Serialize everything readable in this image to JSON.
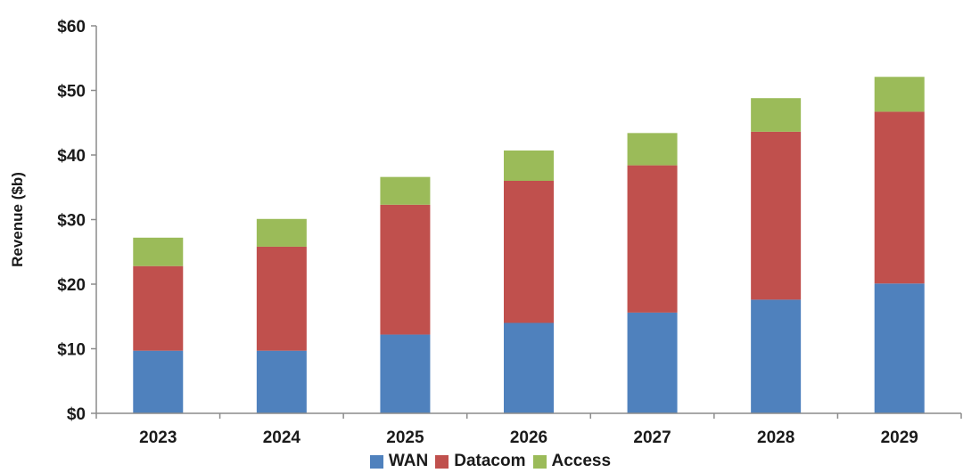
{
  "chart_data": {
    "type": "bar",
    "stacked": true,
    "title": "",
    "xlabel": "",
    "ylabel": "Revenue ($b)",
    "ylim": [
      0,
      60
    ],
    "yticks": [
      0,
      10,
      20,
      30,
      40,
      50,
      60
    ],
    "ytick_labels": [
      "$0",
      "$10",
      "$20",
      "$30",
      "$40",
      "$50",
      "$60"
    ],
    "grid": false,
    "legend_position": "bottom",
    "categories": [
      "2023",
      "2024",
      "2025",
      "2026",
      "2027",
      "2028",
      "2029"
    ],
    "series": [
      {
        "name": "WAN",
        "color": "#4f81bd",
        "values": [
          9.7,
          9.7,
          12.2,
          14.0,
          15.6,
          17.6,
          20.1
        ]
      },
      {
        "name": "Datacom",
        "color": "#c0504d",
        "values": [
          13.1,
          16.1,
          20.1,
          22.0,
          22.8,
          26.0,
          26.6
        ]
      },
      {
        "name": "Access",
        "color": "#9bbb59",
        "values": [
          4.4,
          4.3,
          4.3,
          4.7,
          5.0,
          5.2,
          5.4
        ]
      }
    ]
  }
}
